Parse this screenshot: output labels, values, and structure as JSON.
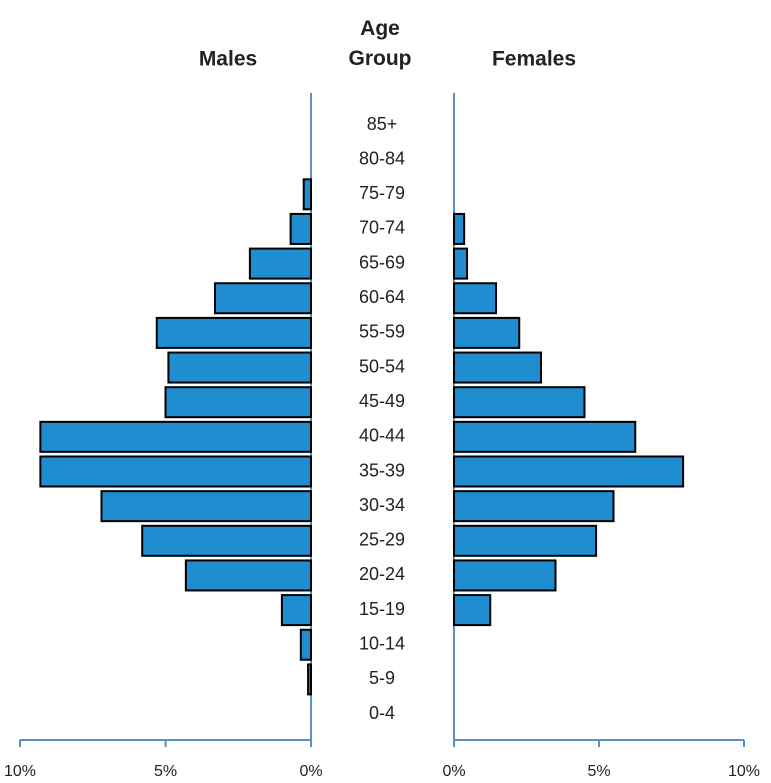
{
  "chart_data": {
    "type": "pyramid",
    "category_label": "Age Group",
    "categories": [
      "85+",
      "80-84",
      "75-79",
      "70-74",
      "65-69",
      "60-64",
      "55-59",
      "50-54",
      "45-49",
      "40-44",
      "35-39",
      "30-34",
      "25-29",
      "20-24",
      "15-19",
      "10-14",
      "5-9",
      "0-4"
    ],
    "series": [
      {
        "name": "Males",
        "color": "#1f8dd0",
        "values": [
          0,
          0,
          0.25,
          0.7,
          2.1,
          3.3,
          5.3,
          4.9,
          5.0,
          9.3,
          9.3,
          7.2,
          5.8,
          4.3,
          1.0,
          0.35,
          0.1,
          0
        ]
      },
      {
        "name": "Females",
        "color": "#1f8dd0",
        "values": [
          0,
          0,
          0,
          0.35,
          0.45,
          1.45,
          2.25,
          3.0,
          4.5,
          6.25,
          7.9,
          5.5,
          4.9,
          3.5,
          1.25,
          0,
          0,
          0
        ]
      }
    ],
    "xlim": [
      0,
      10
    ],
    "xticks": [
      {
        "value": 0,
        "label": "0%"
      },
      {
        "value": 5,
        "label": "5%"
      },
      {
        "value": 10,
        "label": "10%"
      }
    ]
  }
}
